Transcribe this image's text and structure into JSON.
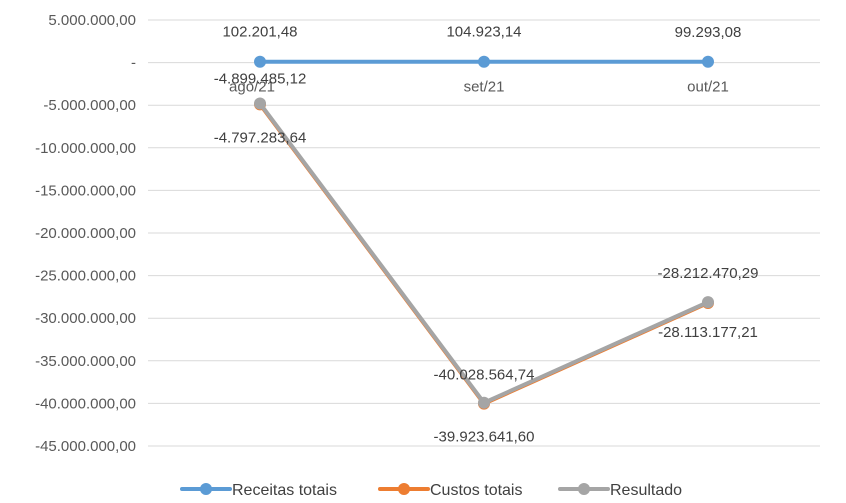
{
  "chart_data": {
    "type": "line",
    "categories": [
      "ago/21",
      "set/21",
      "out/21"
    ],
    "ylim": [
      -45000000,
      5000000
    ],
    "yticks": [
      {
        "value": 5000000,
        "label": "5.000.000,00"
      },
      {
        "value": 0,
        "label": "-"
      },
      {
        "value": -5000000,
        "label": "-5.000.000,00"
      },
      {
        "value": -10000000,
        "label": "-10.000.000,00"
      },
      {
        "value": -15000000,
        "label": "-15.000.000,00"
      },
      {
        "value": -20000000,
        "label": "-20.000.000,00"
      },
      {
        "value": -25000000,
        "label": "-25.000.000,00"
      },
      {
        "value": -30000000,
        "label": "-30.000.000,00"
      },
      {
        "value": -35000000,
        "label": "-35.000.000,00"
      },
      {
        "value": -40000000,
        "label": "-40.000.000,00"
      },
      {
        "value": -45000000,
        "label": "-45.000.000,00"
      }
    ],
    "grid": true,
    "legend_position": "bottom",
    "series": [
      {
        "name": "Receitas totais",
        "color": "#5B9BD5",
        "values": [
          102201.48,
          104923.14,
          99293.08
        ],
        "labels": [
          "102.201,48",
          "104.923,14",
          "99.293,08"
        ]
      },
      {
        "name": "Custos totais",
        "color": "#ED7D31",
        "values": [
          -4899485.12,
          -40028564.74,
          -28212470.29
        ],
        "labels": [
          "-4.899.485,12",
          "-40.028.564,74",
          "-28.212.470,29"
        ]
      },
      {
        "name": "Resultado",
        "color": "#A5A5A5",
        "values": [
          -4797283.64,
          -39923641.6,
          -28113177.21
        ],
        "labels": [
          "-4.797.283,64",
          "-39.923.641,60",
          "-28.113.177,21"
        ]
      }
    ]
  }
}
